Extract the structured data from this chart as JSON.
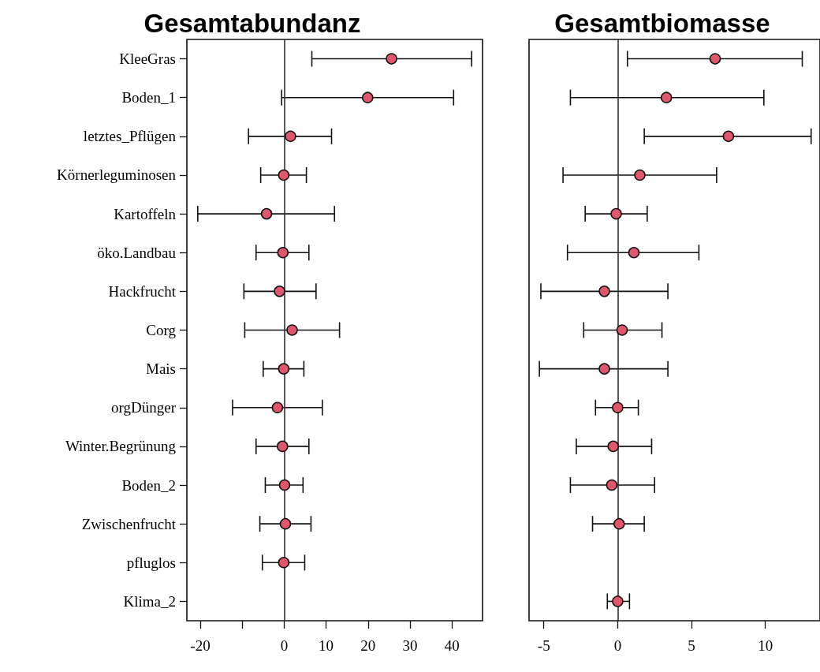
{
  "chart_data": [
    {
      "type": "scatter",
      "title": "Gesamtabundanz",
      "orientation": "horizontal",
      "marker": "circle",
      "grid": false,
      "categories": [
        "KleeGras",
        "Boden_1",
        "letztes_Pflügen",
        "Körnerleguminosen",
        "Kartoffeln",
        "öko.Landbau",
        "Hackfrucht",
        "Corg",
        "Mais",
        "orgDünger",
        "Winter.Begrünung",
        "Boden_2",
        "Zwischenfrucht",
        "pfluglos",
        "Klima_2"
      ],
      "series": [
        {
          "color": "#e0566b",
          "values": [
            25.6,
            19.9,
            1.5,
            -0.1,
            -4.2,
            -0.3,
            -1.1,
            1.9,
            -0.1,
            -1.6,
            -0.4,
            0.1,
            0.3,
            -0.1,
            null
          ],
          "errors": [
            [
              6.6,
              44.7
            ],
            [
              -0.6,
              40.4
            ],
            [
              -8.5,
              11.3
            ],
            [
              -5.6,
              5.3
            ],
            [
              -20.6,
              12.0
            ],
            [
              -6.7,
              5.9
            ],
            [
              -9.6,
              7.6
            ],
            [
              -9.4,
              13.2
            ],
            [
              -5.0,
              4.7
            ],
            [
              -12.3,
              9.1
            ],
            [
              -6.7,
              5.9
            ],
            [
              -4.5,
              4.5
            ],
            [
              -5.8,
              6.4
            ],
            [
              -5.2,
              4.9
            ],
            null
          ]
        }
      ],
      "xlim": [
        -23.2,
        47.3
      ],
      "xticks": [
        -20,
        {
          "value": -10,
          "label": null
        },
        0,
        10,
        20,
        30,
        40
      ],
      "ref_lines": [
        {
          "axis": "x",
          "value": 0,
          "color": "#333333"
        }
      ]
    },
    {
      "type": "scatter",
      "title": "Gesamtbiomasse",
      "orientation": "horizontal",
      "marker": "circle",
      "grid": false,
      "tick_labels": "x",
      "categories": [
        null,
        null,
        null,
        null,
        null,
        null,
        null,
        null,
        null,
        null,
        null,
        null,
        null,
        null,
        null
      ],
      "series": [
        {
          "color": "#e0566b",
          "values": [
            6.6,
            3.3,
            7.5,
            1.5,
            -0.1,
            1.1,
            -0.9,
            0.3,
            -0.9,
            0.0,
            -0.3,
            -0.4,
            0.1,
            null,
            0.0
          ],
          "errors": [
            [
              0.66,
              12.5
            ],
            [
              -3.2,
              9.9
            ],
            [
              1.8,
              13.1
            ],
            [
              -3.7,
              6.7
            ],
            [
              -2.2,
              2.0
            ],
            [
              -3.4,
              5.5
            ],
            [
              -5.2,
              3.4
            ],
            [
              -2.3,
              3.0
            ],
            [
              -5.3,
              3.4
            ],
            [
              -1.5,
              1.4
            ],
            [
              -2.8,
              2.3
            ],
            [
              -3.2,
              2.5
            ],
            [
              -1.7,
              1.8
            ],
            null,
            [
              -0.7,
              0.8
            ]
          ]
        }
      ],
      "xlim": [
        -6.0,
        13.7
      ],
      "xticks": [
        -5,
        0,
        5,
        10
      ],
      "ref_lines": [
        {
          "axis": "x",
          "value": 0,
          "color": "#333333"
        }
      ]
    }
  ]
}
